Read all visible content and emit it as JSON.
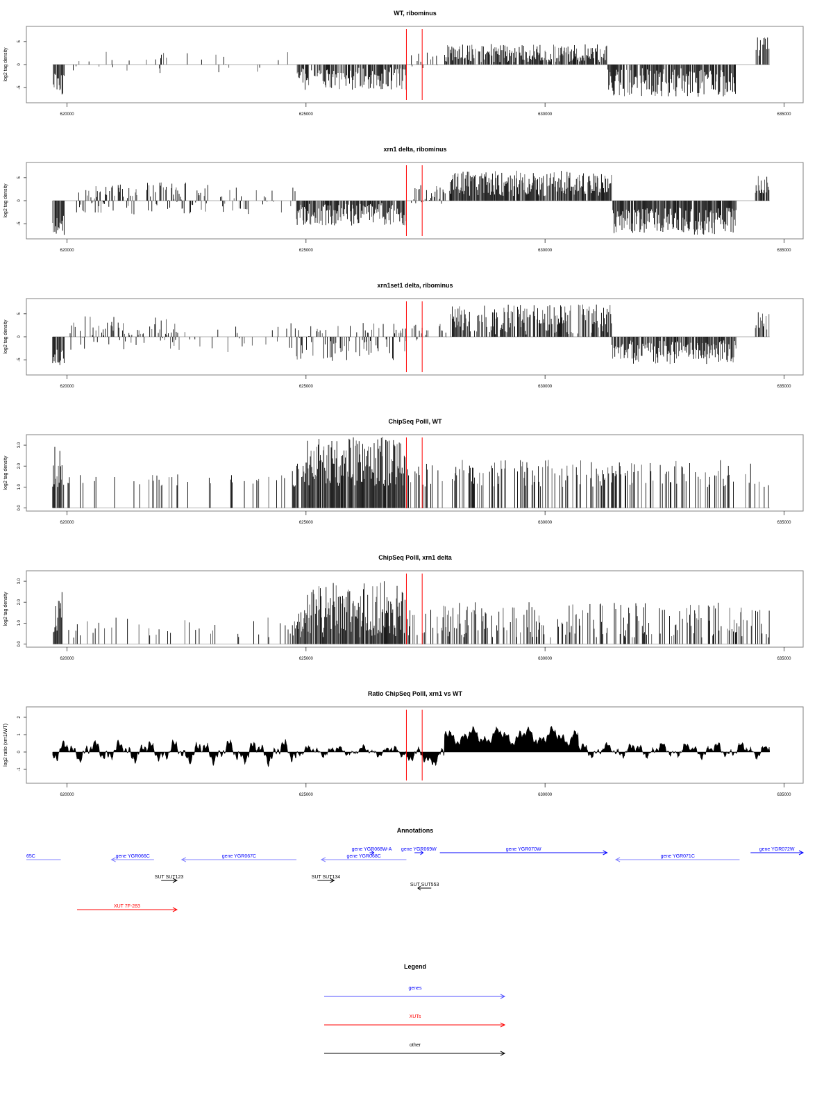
{
  "chart_data": [
    {
      "type": "bar",
      "title": "WT, ribominus",
      "ylabel": "log2 tag density",
      "xlim": [
        619150,
        635400
      ],
      "ylim": [
        -8.3,
        8.3
      ],
      "xticks": [
        "620000",
        "625000",
        "630000",
        "635000"
      ],
      "xtick_values": [
        620000,
        625000,
        630000,
        635000
      ],
      "yticks": [
        "-5",
        "0",
        "5"
      ],
      "ytick_values": [
        -5,
        0,
        5
      ],
      "markers": [
        627100,
        627430
      ],
      "marker_color": "#ff0000",
      "segments": [
        {
          "s": 619700,
          "e": 619950,
          "lo": -6.5,
          "hi": -2,
          "p": 0.9
        },
        {
          "s": 619950,
          "e": 624800,
          "lo": -2.2,
          "hi": 2.8,
          "p": 0.08
        },
        {
          "s": 624800,
          "e": 627100,
          "lo": -5.5,
          "hi": -0.5,
          "p": 0.8
        },
        {
          "s": 627100,
          "e": 627900,
          "lo": -1,
          "hi": 3,
          "p": 0.2
        },
        {
          "s": 627900,
          "e": 631300,
          "lo": 0.5,
          "hi": 4.5,
          "p": 0.85
        },
        {
          "s": 631300,
          "e": 634000,
          "lo": -7,
          "hi": -0.8,
          "p": 0.85
        },
        {
          "s": 634400,
          "e": 634700,
          "lo": 1.5,
          "hi": 6,
          "p": 0.7
        }
      ]
    },
    {
      "type": "bar",
      "title": "xrn1 delta, ribominus",
      "ylabel": "log2 tag density",
      "xlim": [
        619150,
        635400
      ],
      "ylim": [
        -8.3,
        8.3
      ],
      "xticks": [
        "620000",
        "625000",
        "630000",
        "635000"
      ],
      "xtick_values": [
        620000,
        625000,
        630000,
        635000
      ],
      "yticks": [
        "-5",
        "0",
        "5"
      ],
      "ytick_values": [
        -5,
        0,
        5
      ],
      "markers": [
        627100,
        627430
      ],
      "marker_color": "#ff0000",
      "segments": [
        {
          "s": 619700,
          "e": 619950,
          "lo": -7.5,
          "hi": -3,
          "p": 0.95
        },
        {
          "s": 620200,
          "e": 623000,
          "lo": -3,
          "hi": 4,
          "p": 0.6
        },
        {
          "s": 623000,
          "e": 624800,
          "lo": -3,
          "hi": 3,
          "p": 0.25
        },
        {
          "s": 624800,
          "e": 627100,
          "lo": -5.5,
          "hi": -0.5,
          "p": 0.9
        },
        {
          "s": 627100,
          "e": 628000,
          "lo": -1,
          "hi": 3.5,
          "p": 0.5
        },
        {
          "s": 628000,
          "e": 631400,
          "lo": 1,
          "hi": 6.5,
          "p": 0.95
        },
        {
          "s": 631400,
          "e": 634000,
          "lo": -7.5,
          "hi": -1.5,
          "p": 0.95
        },
        {
          "s": 634400,
          "e": 634700,
          "lo": 1.5,
          "hi": 5.5,
          "p": 0.8
        }
      ]
    },
    {
      "type": "bar",
      "title": "xrn1set1 delta, ribominus",
      "ylabel": "log2 tag density",
      "xlim": [
        619150,
        635400
      ],
      "ylim": [
        -8.3,
        8.3
      ],
      "xticks": [
        "620000",
        "625000",
        "630000",
        "635000"
      ],
      "xtick_values": [
        620000,
        625000,
        630000,
        635000
      ],
      "yticks": [
        "-5",
        "0",
        "5"
      ],
      "ytick_values": [
        -5,
        0,
        5
      ],
      "markers": [
        627100,
        627430
      ],
      "marker_color": "#ff0000",
      "segments": [
        {
          "s": 619700,
          "e": 619950,
          "lo": -6.5,
          "hi": -2.5,
          "p": 0.95
        },
        {
          "s": 620050,
          "e": 622300,
          "lo": -3,
          "hi": 4.5,
          "p": 0.45
        },
        {
          "s": 622300,
          "e": 624800,
          "lo": -4,
          "hi": 3,
          "p": 0.2
        },
        {
          "s": 624800,
          "e": 627100,
          "lo": -5.5,
          "hi": 3,
          "p": 0.5
        },
        {
          "s": 627100,
          "e": 628000,
          "lo": -1,
          "hi": 3,
          "p": 0.3
        },
        {
          "s": 628000,
          "e": 631400,
          "lo": 0.5,
          "hi": 7,
          "p": 0.75
        },
        {
          "s": 631400,
          "e": 634000,
          "lo": -6,
          "hi": -0.8,
          "p": 0.85
        },
        {
          "s": 634400,
          "e": 634700,
          "lo": 1.5,
          "hi": 5.5,
          "p": 0.6
        }
      ]
    },
    {
      "type": "bar",
      "title": "ChipSeq PolII, WT",
      "ylabel": "log2 tag density",
      "xlim": [
        619150,
        635400
      ],
      "ylim": [
        -0.15,
        3.5
      ],
      "xticks": [
        "620000",
        "625000",
        "630000",
        "635000"
      ],
      "xtick_values": [
        620000,
        625000,
        630000,
        635000
      ],
      "yticks": [
        "0.0",
        "1.0",
        "2.0",
        "3.0"
      ],
      "ytick_values": [
        0,
        1,
        2,
        3
      ],
      "markers": [
        627100,
        627430
      ],
      "marker_color": "#ff0000",
      "segments": [
        {
          "s": 619700,
          "e": 619900,
          "lo": 1,
          "hi": 3,
          "p": 0.9
        },
        {
          "s": 619900,
          "e": 624700,
          "lo": 1,
          "hi": 1.6,
          "p": 0.12
        },
        {
          "s": 624700,
          "e": 625000,
          "lo": 1,
          "hi": 2.3,
          "p": 0.6
        },
        {
          "s": 625000,
          "e": 627100,
          "lo": 1,
          "hi": 3.4,
          "p": 0.95
        },
        {
          "s": 627100,
          "e": 634700,
          "lo": 1,
          "hi": 2.3,
          "p": 0.35
        }
      ]
    },
    {
      "type": "bar",
      "title": "ChipSeq PolII, xrn1 delta",
      "ylabel": "log2 tag density",
      "xlim": [
        619150,
        635400
      ],
      "ylim": [
        -0.15,
        3.5
      ],
      "xticks": [
        "620000",
        "625000",
        "630000",
        "635000"
      ],
      "xtick_values": [
        620000,
        625000,
        630000,
        635000
      ],
      "yticks": [
        "0.0",
        "1.0",
        "2.0",
        "3.0"
      ],
      "ytick_values": [
        0,
        1,
        2,
        3
      ],
      "markers": [
        627100,
        627430
      ],
      "marker_color": "#ff0000",
      "segments": [
        {
          "s": 619700,
          "e": 619900,
          "lo": 0.3,
          "hi": 2.5,
          "p": 0.9
        },
        {
          "s": 619900,
          "e": 624700,
          "lo": 0.3,
          "hi": 1.3,
          "p": 0.1
        },
        {
          "s": 624700,
          "e": 625000,
          "lo": 0.3,
          "hi": 1.7,
          "p": 0.6
        },
        {
          "s": 625000,
          "e": 627100,
          "lo": 0.3,
          "hi": 3.0,
          "p": 0.95
        },
        {
          "s": 627100,
          "e": 634700,
          "lo": 0.3,
          "hi": 2.0,
          "p": 0.4
        }
      ]
    },
    {
      "type": "area",
      "title": "Ratio ChipSeq PolII, xrn1 vs WT",
      "ylabel": "log2 ratio (xrn1/WT)",
      "xlim": [
        619150,
        635400
      ],
      "ylim": [
        -1.8,
        2.6
      ],
      "xticks": [
        "620000",
        "625000",
        "630000",
        "635000"
      ],
      "xtick_values": [
        620000,
        625000,
        630000,
        635000
      ],
      "yticks": [
        "-1",
        "0",
        "1",
        "2"
      ],
      "ytick_values": [
        -1,
        0,
        1,
        2
      ],
      "markers": [
        627100,
        627430
      ],
      "marker_color": "#ff0000",
      "segments": [
        {
          "s": 619700,
          "e": 622000,
          "mean": 0.05,
          "amp": 0.7
        },
        {
          "s": 622000,
          "e": 624800,
          "mean": 0.0,
          "amp": 0.8
        },
        {
          "s": 624800,
          "e": 627100,
          "mean": 0.05,
          "amp": 0.35
        },
        {
          "s": 627100,
          "e": 627900,
          "mean": -0.3,
          "amp": 0.6
        },
        {
          "s": 627900,
          "e": 630700,
          "mean": 0.9,
          "amp": 0.6
        },
        {
          "s": 630700,
          "e": 634700,
          "mean": 0.1,
          "amp": 0.5
        }
      ]
    }
  ],
  "annotations": {
    "title": "Annotations",
    "features": [
      {
        "label": "65C",
        "type": "gene",
        "strand": "-",
        "start": 619150,
        "end": 619870,
        "row": 1
      },
      {
        "label": "gene YGR066C",
        "type": "gene",
        "strand": "-",
        "start": 620930,
        "end": 621820,
        "row": 1
      },
      {
        "label": "gene YGR067C",
        "type": "gene",
        "strand": "-",
        "start": 622400,
        "end": 624800,
        "row": 1
      },
      {
        "label": "gene YGR068C",
        "type": "gene",
        "strand": "-",
        "start": 625320,
        "end": 627100,
        "row": 1
      },
      {
        "label": "gene YGR068W-A",
        "type": "gene",
        "strand": "+",
        "start": 626330,
        "end": 626420,
        "row": 0
      },
      {
        "label": "gene YGR069W",
        "type": "gene",
        "strand": "+",
        "start": 627270,
        "end": 627450,
        "row": 0
      },
      {
        "label": "gene YGR070W",
        "type": "gene",
        "strand": "+",
        "start": 627800,
        "end": 631300,
        "row": 0
      },
      {
        "label": "gene YGR071C",
        "type": "gene",
        "strand": "-",
        "start": 631480,
        "end": 634070,
        "row": 1
      },
      {
        "label": "gene YGR072W",
        "type": "gene",
        "strand": "+",
        "start": 634300,
        "end": 635400,
        "row": 0
      },
      {
        "label": "SUT SUT123",
        "type": "other",
        "strand": "+",
        "start": 621970,
        "end": 622300,
        "row": 2
      },
      {
        "label": "SUT SUT134",
        "type": "other",
        "strand": "+",
        "start": 625240,
        "end": 625590,
        "row": 2
      },
      {
        "label": "SUT SUT553",
        "type": "other",
        "strand": "-",
        "start": 627340,
        "end": 627620,
        "row": 3
      },
      {
        "label": "XUT 7F-283",
        "type": "xut",
        "strand": "+",
        "start": 620210,
        "end": 622300,
        "row": 4
      }
    ]
  },
  "legend": {
    "title": "Legend",
    "items": [
      {
        "label": "genes",
        "color": "#0000ff"
      },
      {
        "label": "XUTs",
        "color": "#ff0000"
      },
      {
        "label": "other",
        "color": "#000000"
      }
    ]
  },
  "colors": {
    "gene_minus": "#8080ff",
    "gene_plus": "#0000ff",
    "xut": "#ff0000",
    "other": "#000000"
  }
}
